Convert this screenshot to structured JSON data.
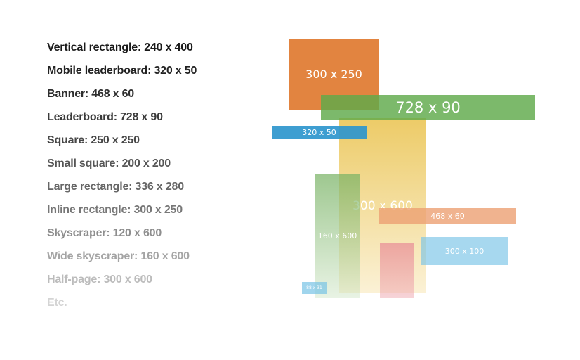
{
  "sizes_list": [
    {
      "label": "Vertical rectangle: 240 x 400",
      "color": "#1a1a1a"
    },
    {
      "label": "Mobile leaderboard: 320 x 50",
      "color": "#222222"
    },
    {
      "label": "Banner: 468 x 60",
      "color": "#2e2e2e"
    },
    {
      "label": "Leaderboard: 728 x 90",
      "color": "#3a3a3a"
    },
    {
      "label": "Square: 250 x 250",
      "color": "#474747"
    },
    {
      "label": "Small square: 200 x 200",
      "color": "#555555"
    },
    {
      "label": "Large rectangle: 336 x 280",
      "color": "#666666"
    },
    {
      "label": "Inline rectangle: 300 x 250",
      "color": "#777777"
    },
    {
      "label": "Skyscraper: 120 x 600",
      "color": "#8e8e8e"
    },
    {
      "label": "Wide skyscraper: 160 x 600",
      "color": "#a4a4a4"
    },
    {
      "label": "Half-page: 300 x 600",
      "color": "#bcbcbc"
    },
    {
      "label": "Etc.",
      "color": "#d4d4d4"
    }
  ],
  "ad_blocks": {
    "b300x600": "300 x 600",
    "b160x600": "160 x 600",
    "b300x250": "300 x 250",
    "b728x90": "728 x 90",
    "b320x50": "320 x 50",
    "b468x60": "468 x 60",
    "b300x100": "300 x 100",
    "b88x31": "88 x 31"
  }
}
